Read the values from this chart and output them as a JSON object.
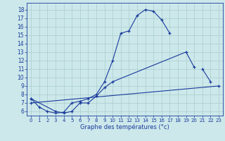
{
  "xlabel": "Graphe des températures (°c)",
  "xlim": [
    -0.5,
    23.5
  ],
  "ylim": [
    5.5,
    18.8
  ],
  "xticks": [
    0,
    1,
    2,
    3,
    4,
    5,
    6,
    7,
    8,
    9,
    10,
    11,
    12,
    13,
    14,
    15,
    16,
    17,
    18,
    19,
    20,
    21,
    22,
    23
  ],
  "yticks": [
    6,
    7,
    8,
    9,
    10,
    11,
    12,
    13,
    14,
    15,
    16,
    17,
    18
  ],
  "bg_color": "#cce8ea",
  "grid_color": "#aacccc",
  "line_color": "#1a3a9c",
  "line1_x": [
    0,
    1,
    2,
    3,
    4,
    5,
    6,
    7,
    8,
    9,
    10,
    11,
    12,
    13,
    14,
    15,
    16,
    17
  ],
  "line1_y": [
    7.5,
    6.5,
    6.0,
    5.8,
    5.9,
    7.0,
    7.2,
    7.5,
    8.0,
    9.5,
    12.0,
    15.2,
    15.5,
    17.3,
    18.0,
    17.8,
    16.8,
    15.2
  ],
  "line2_x": [
    0,
    3,
    4,
    5,
    6,
    7,
    8,
    9,
    10,
    19,
    20,
    21,
    22
  ],
  "line2_y": [
    7.5,
    6.0,
    5.8,
    6.0,
    7.0,
    7.0,
    7.8,
    8.8,
    9.5,
    13.0,
    11.2,
    11.0,
    9.5
  ],
  "line3_x": [
    0,
    23
  ],
  "line3_y": [
    7.0,
    9.0
  ]
}
